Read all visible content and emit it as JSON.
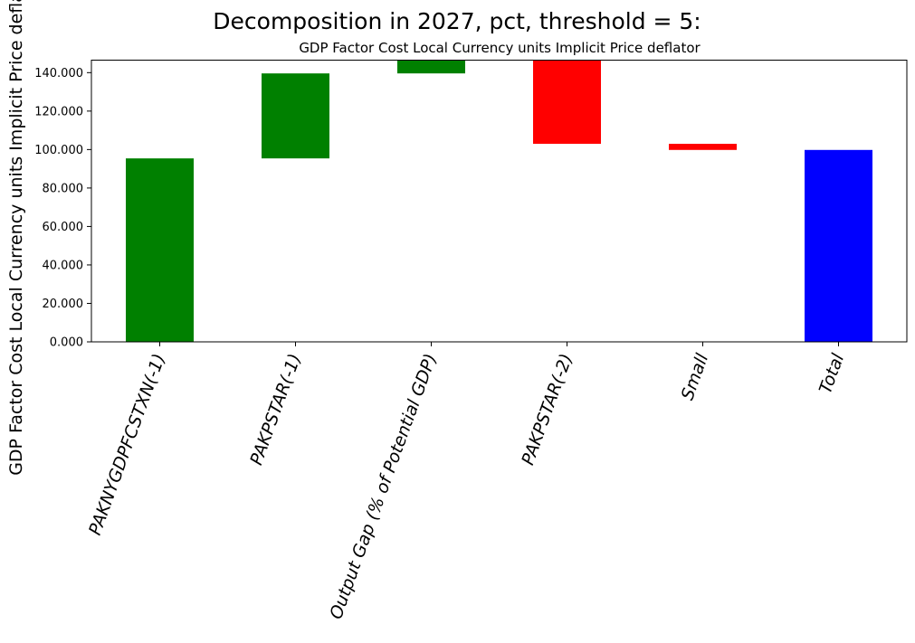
{
  "chart_data": {
    "type": "bar",
    "style": "waterfall",
    "title": "Decomposition in 2027, pct, threshold = 5:",
    "subtitle": "GDP Factor Cost Local Currency units Implicit Price deflator",
    "ylabel": "GDP Factor Cost Local Currency units Implicit Price deflator",
    "xlabel": "",
    "ylim": [
      0,
      146.5
    ],
    "yticks": [
      "0.000",
      "20.000",
      "40.000",
      "60.000",
      "80.000",
      "100.000",
      "120.000",
      "140.000"
    ],
    "categories": [
      "PAKNYGDPFCSTXN(-1)",
      "PAKPSTAR(-1)",
      "Output Gap (% of Potential GDP)",
      "PAKPSTAR(-2)",
      "Small",
      "Total"
    ],
    "bars": [
      {
        "bottom": 0,
        "top": 95.4,
        "color": "#008000"
      },
      {
        "bottom": 95.4,
        "top": 139.6,
        "color": "#008000"
      },
      {
        "bottom": 139.6,
        "top": 146.5,
        "color": "#008000"
      },
      {
        "bottom": 103.0,
        "top": 146.5,
        "color": "#ff0000"
      },
      {
        "bottom": 99.8,
        "top": 103.0,
        "color": "#ff0000"
      },
      {
        "bottom": 0,
        "top": 99.8,
        "color": "#0000ff"
      }
    ],
    "grid": false,
    "legend": "none"
  }
}
